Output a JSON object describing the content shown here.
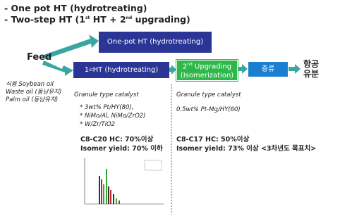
{
  "header": {
    "line1": "- One pot HT (hydrotreating)",
    "line2_parts": [
      "- Two-step HT (1",
      "st",
      " HT + 2",
      "nd",
      " upgrading)"
    ]
  },
  "diagram": {
    "feed": "Feed",
    "one_pot": "One-pot HT (hydrotreating)",
    "first_ht_parts": [
      "1",
      "st",
      " HT (hydrotreating)"
    ],
    "upgrading_parts": [
      "2",
      "nd",
      " Upgrading"
    ],
    "isomerization": "(Isomerization)",
    "distillation": "증류",
    "product": [
      "항공",
      "유분"
    ]
  },
  "feeds": [
    "식용 Soybean oil",
    "Waste oil (동남유지)",
    "Palm oil (동남유지)"
  ],
  "left": {
    "catalyst_title": "Granule  type catalyst",
    "catalysts": [
      "* 3wt% Pt/HY(80),",
      "* NiMo/Al, NiMo/ZrO2)",
      "* W/Zr/TiO2"
    ],
    "results": [
      "C8-C20 HC: 70%이상",
      "Isomer yield: 70% 이하"
    ]
  },
  "right": {
    "catalyst_title": "Granule  type catalyst",
    "catalysts": [
      "0.5wt% Pt-Mg/HY(60)"
    ],
    "results": [
      "C8-C17 HC: 50%이상",
      "Isomer yield: 73% 이상 <3차년도 목표치>"
    ]
  }
}
